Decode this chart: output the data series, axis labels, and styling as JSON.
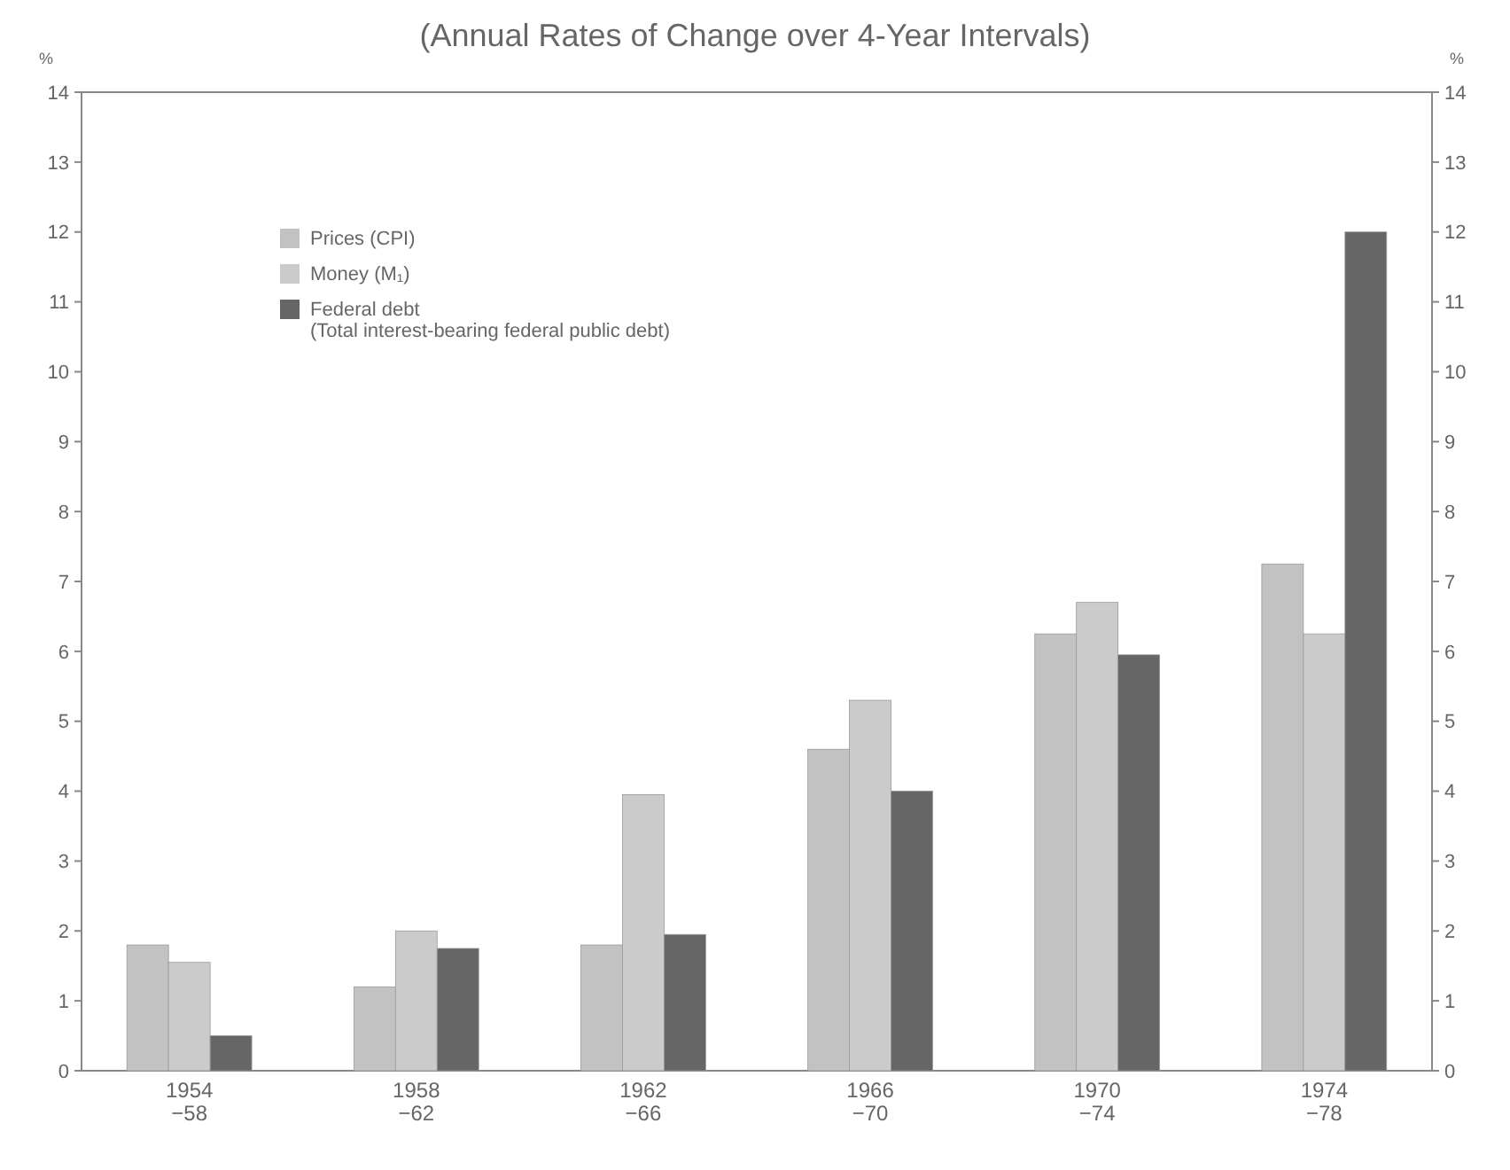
{
  "chart_data": {
    "type": "bar",
    "title": "(Annual Rates of Change over 4-Year Intervals)",
    "ylabel": "%",
    "y2label": "%",
    "categories": [
      "1954 −58",
      "1958 −62",
      "1962 −66",
      "1966 −70",
      "1970 −74",
      "1974 −78"
    ],
    "series": [
      {
        "name": "Prices (CPI)",
        "color": "#c2c2c2",
        "values": [
          1.8,
          1.2,
          1.8,
          4.6,
          6.25,
          7.25
        ]
      },
      {
        "name": "Money (M₁)",
        "color": "#cbcbcb",
        "values": [
          1.55,
          2.0,
          3.95,
          5.3,
          6.7,
          6.25
        ]
      },
      {
        "name": "Federal debt (Total interest-bearing federal public debt)",
        "color": "#666666",
        "values": [
          0.5,
          1.75,
          1.95,
          4.0,
          5.95,
          12.0
        ]
      }
    ],
    "ylim": [
      0,
      14
    ],
    "yticks": [
      0,
      1,
      2,
      3,
      4,
      5,
      6,
      7,
      8,
      9,
      10,
      11,
      12,
      13,
      14
    ],
    "y2lim": [
      0,
      14
    ],
    "y2ticks": [
      0,
      1,
      2,
      3,
      4,
      5,
      6,
      7,
      8,
      9,
      10,
      11,
      12,
      13,
      14
    ],
    "grid": false,
    "legend": "top left"
  }
}
